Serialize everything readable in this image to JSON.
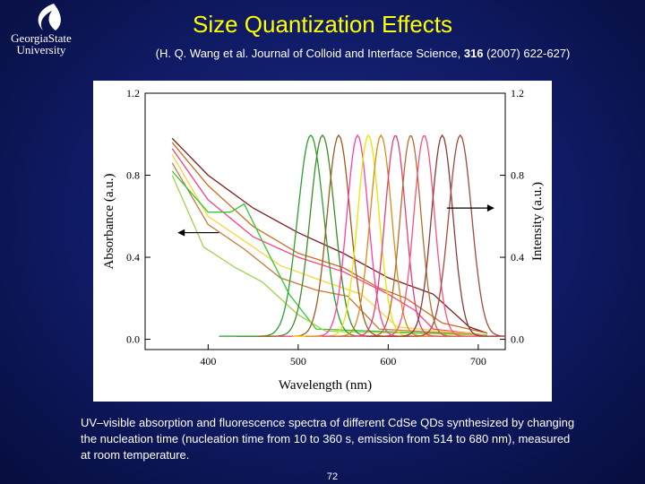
{
  "logo": {
    "line1": "GeorgiaState",
    "line2": "University"
  },
  "title": "Size Quantization Effects",
  "citation": {
    "prefix": "(H. Q. Wang et al. Journal of Colloid and Interface Science, ",
    "volume": "316",
    "suffix": " (2007) 622-627)"
  },
  "caption": "UV–visible absorption and fluorescence spectra of different CdSe QDs synthesized by changing the nucleation time (nucleation time from 10 to 360 s, emission from 514 to 680 nm), measured at room temperature.",
  "page_number": "72",
  "chart_data": {
    "type": "line",
    "title": "",
    "xlabel": "Wavelength (nm)",
    "ylabel": "Absorbance (a.u.)",
    "y2label": "Intensity (a.u.)",
    "xlim": [
      330,
      730
    ],
    "ylim": [
      -0.05,
      1.2
    ],
    "x_ticks": [
      400,
      500,
      600,
      700
    ],
    "y_ticks": [
      0.0,
      0.4,
      0.8,
      1.2
    ],
    "y2_ticks": [
      0.0,
      0.4,
      0.8,
      1.2
    ],
    "y_tick_labels": [
      "0.0",
      "0.4",
      "0.8",
      "1.2"
    ],
    "y2_tick_labels": [
      "0.0",
      "0.4",
      "0.8",
      "1.2"
    ],
    "grid": false,
    "annotations": [
      "left arrow: absorbance axis",
      "right arrow: intensity axis"
    ],
    "emission_series": [
      {
        "peak_nm": 514,
        "fwhm_nm": 34,
        "color": "#2aa02a"
      },
      {
        "peak_nm": 527,
        "fwhm_nm": 32,
        "color": "#3c8c2a"
      },
      {
        "peak_nm": 545,
        "fwhm_nm": 30,
        "color": "#a05a1e"
      },
      {
        "peak_nm": 566,
        "fwhm_nm": 28,
        "color": "#ff3ea5"
      },
      {
        "peak_nm": 578,
        "fwhm_nm": 28,
        "color": "#e6e600"
      },
      {
        "peak_nm": 592,
        "fwhm_nm": 28,
        "color": "#d98a1a"
      },
      {
        "peak_nm": 608,
        "fwhm_nm": 27,
        "color": "#e0407a"
      },
      {
        "peak_nm": 625,
        "fwhm_nm": 27,
        "color": "#b86b2e"
      },
      {
        "peak_nm": 640,
        "fwhm_nm": 27,
        "color": "#ff5078"
      },
      {
        "peak_nm": 660,
        "fwhm_nm": 28,
        "color": "#8b3a3a"
      },
      {
        "peak_nm": 680,
        "fwhm_nm": 30,
        "color": "#a8483a"
      }
    ],
    "absorption_series": [
      {
        "color": "#7a1e1e",
        "points": [
          [
            360,
            0.98
          ],
          [
            400,
            0.8
          ],
          [
            450,
            0.64
          ],
          [
            500,
            0.52
          ],
          [
            550,
            0.42
          ],
          [
            600,
            0.3
          ],
          [
            650,
            0.22
          ],
          [
            690,
            0.06
          ],
          [
            710,
            0.03
          ]
        ]
      },
      {
        "color": "#d06a20",
        "points": [
          [
            360,
            0.96
          ],
          [
            400,
            0.75
          ],
          [
            450,
            0.55
          ],
          [
            500,
            0.42
          ],
          [
            550,
            0.35
          ],
          [
            590,
            0.25
          ],
          [
            620,
            0.2
          ],
          [
            660,
            0.08
          ],
          [
            710,
            0.03
          ]
        ]
      },
      {
        "color": "#ff4080",
        "points": [
          [
            360,
            0.93
          ],
          [
            400,
            0.68
          ],
          [
            450,
            0.5
          ],
          [
            500,
            0.4
          ],
          [
            550,
            0.33
          ],
          [
            600,
            0.22
          ],
          [
            630,
            0.14
          ],
          [
            650,
            0.05
          ],
          [
            710,
            0.02
          ]
        ]
      },
      {
        "color": "#ffd23c",
        "points": [
          [
            360,
            0.9
          ],
          [
            400,
            0.6
          ],
          [
            440,
            0.48
          ],
          [
            480,
            0.36
          ],
          [
            530,
            0.28
          ],
          [
            570,
            0.22
          ],
          [
            610,
            0.06
          ],
          [
            710,
            0.02
          ]
        ]
      },
      {
        "color": "#c87840",
        "points": [
          [
            360,
            0.86
          ],
          [
            400,
            0.56
          ],
          [
            440,
            0.44
          ],
          [
            480,
            0.3
          ],
          [
            520,
            0.24
          ],
          [
            555,
            0.21
          ],
          [
            590,
            0.05
          ],
          [
            710,
            0.02
          ]
        ]
      },
      {
        "color": "#32c832",
        "points": [
          [
            360,
            0.82
          ],
          [
            400,
            0.62
          ],
          [
            425,
            0.62
          ],
          [
            440,
            0.66
          ],
          [
            460,
            0.48
          ],
          [
            490,
            0.22
          ],
          [
            520,
            0.05
          ],
          [
            710,
            0.02
          ]
        ]
      },
      {
        "color": "#a0d24a",
        "points": [
          [
            360,
            0.8
          ],
          [
            395,
            0.45
          ],
          [
            430,
            0.35
          ],
          [
            460,
            0.28
          ],
          [
            500,
            0.12
          ],
          [
            530,
            0.04
          ],
          [
            710,
            0.02
          ]
        ]
      }
    ]
  }
}
